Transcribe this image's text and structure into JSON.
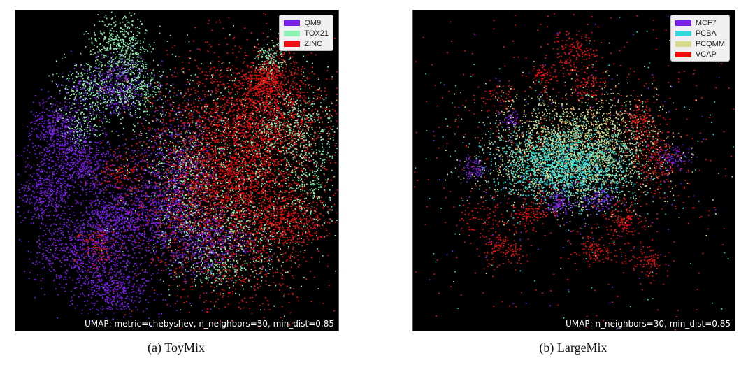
{
  "chart_data": [
    {
      "type": "scatter",
      "panel": "a",
      "caption": "(a) ToyMix",
      "annotation": "UMAP: metric=chebyshev, n_neighbors=30, min_dist=0.85",
      "legend_position": "top-right",
      "background": "#000000",
      "series": [
        {
          "name": "QM9",
          "color": "#7b1fe8"
        },
        {
          "name": "TOX21",
          "color": "#8ef0b2"
        },
        {
          "name": "ZINC",
          "color": "#f01010"
        }
      ]
    },
    {
      "type": "scatter",
      "panel": "b",
      "caption": "(b) LargeMix",
      "annotation": "UMAP: n_neighbors=30, min_dist=0.85",
      "legend_position": "top-right",
      "background": "#000000",
      "series": [
        {
          "name": "MCF7",
          "color": "#7b1fe8"
        },
        {
          "name": "PCBA",
          "color": "#2fd9d9"
        },
        {
          "name": "PCQMM",
          "color": "#d8dc8a"
        },
        {
          "name": "VCAP",
          "color": "#f01010"
        }
      ]
    }
  ]
}
